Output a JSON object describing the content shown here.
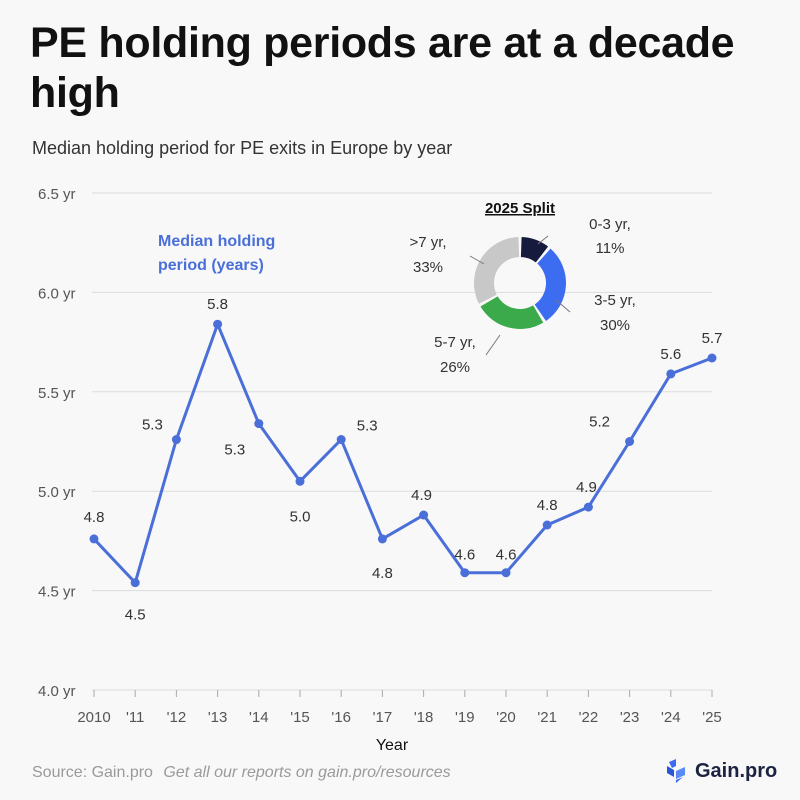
{
  "title": "PE holding periods are at a decade high",
  "subtitle": "Median holding period for PE exits in Europe by year",
  "footer": {
    "source": "Source: Gain.pro",
    "link_text": "Get all our reports on gain.pro/resources",
    "brand": "Gain.pro"
  },
  "colors": {
    "line": "#4a6fd8",
    "grid": "#dcdcdc",
    "series_label": "#4a6fd8",
    "pie_0_3": "#161a3d",
    "pie_3_5": "#3c6df0",
    "pie_5_7": "#3aaa4a",
    "pie_7_plus": "#c8c8c8"
  },
  "chart_data": [
    {
      "type": "line",
      "title": "Median holding period for PE exits in Europe by year",
      "xlabel": "Year",
      "ylabel": "",
      "series_label": "Median holding period (years)",
      "categories": [
        "2010",
        "'11",
        "'12",
        "'13",
        "'14",
        "'15",
        "'16",
        "'17",
        "'18",
        "'19",
        "'20",
        "'21",
        "'22",
        "'23",
        "'24",
        "'25"
      ],
      "values": [
        4.76,
        4.54,
        5.26,
        5.84,
        5.34,
        5.05,
        5.26,
        4.76,
        4.88,
        4.59,
        4.59,
        4.83,
        4.92,
        5.25,
        5.59,
        5.67
      ],
      "data_labels": [
        "4.8",
        "4.5",
        "5.3",
        "5.8",
        "5.3",
        "5.0",
        "5.3",
        "4.8",
        "4.9",
        "4.6",
        "4.6",
        "4.8",
        "4.9",
        "5.2",
        "5.6",
        "5.7"
      ],
      "ylim": [
        4.0,
        6.5
      ],
      "yticks": [
        4.0,
        4.5,
        5.0,
        5.5,
        6.0,
        6.5
      ],
      "ytick_labels": [
        "4.0 yr",
        "4.5 yr",
        "5.0 yr",
        "5.5 yr",
        "6.0 yr",
        "6.5 yr"
      ],
      "grid": true
    },
    {
      "type": "pie",
      "donut": true,
      "title": "2025 Split",
      "slices": [
        {
          "label": "0-3 yr,",
          "pct_label": "11%",
          "value": 11
        },
        {
          "label": "3-5 yr,",
          "pct_label": "30%",
          "value": 30
        },
        {
          "label": "5-7 yr,",
          "pct_label": "26%",
          "value": 26
        },
        {
          "label": ">7 yr,",
          "pct_label": "33%",
          "value": 33
        }
      ]
    }
  ]
}
